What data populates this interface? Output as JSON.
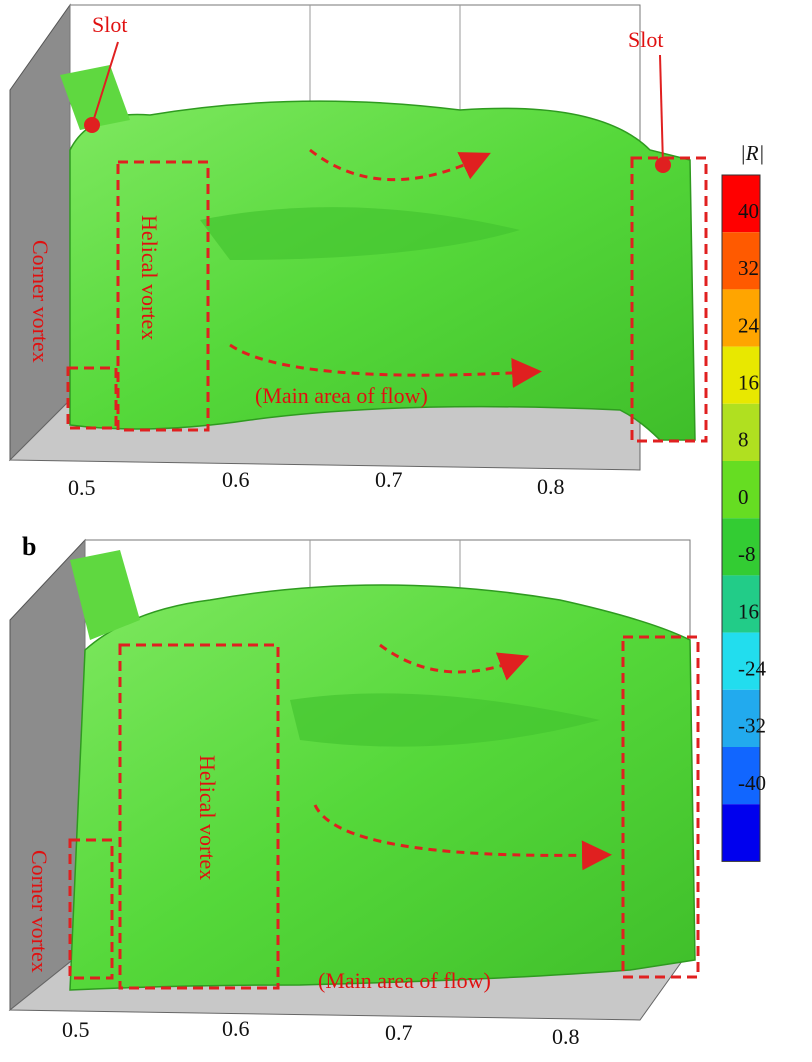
{
  "panels": [
    {
      "label": null,
      "slot_labels": [
        "Slot",
        "Slot"
      ],
      "corner_label": "Corner vortex",
      "helical_label": "Helical vortex",
      "flow_label": "(Main area of flow)",
      "x_ticks": [
        "0.5",
        "0.6",
        "0.7",
        "0.8"
      ]
    },
    {
      "label": "b",
      "corner_label": "Corner vortex",
      "helical_label": "Helical vortex",
      "flow_label": "(Main area of flow)",
      "x_ticks": [
        "0.5",
        "0.6",
        "0.7",
        "0.8"
      ]
    }
  ],
  "colorbar": {
    "title": "|R|",
    "labels": [
      "40",
      "32",
      "24",
      "16",
      "8",
      "0",
      "-8",
      "16",
      "-24",
      "-32",
      "-40"
    ],
    "colors": [
      "#ff0000",
      "#ff5a00",
      "#ffa500",
      "#e8e800",
      "#b0e020",
      "#66dd22",
      "#33cc33",
      "#22cc88",
      "#22ddee",
      "#22aaee",
      "#1166ff",
      "#0000ee"
    ]
  }
}
